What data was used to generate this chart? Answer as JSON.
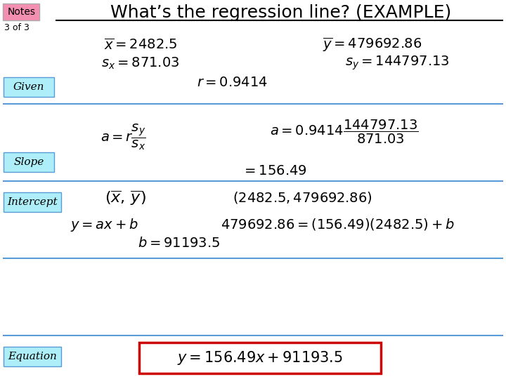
{
  "title": "What’s the regression line? (EXAMPLE)",
  "notes_label": "Notes",
  "notes_sub": "3 of 3",
  "bg_color": "#ffffff",
  "label_bg_cyan": "#aeeef8",
  "notes_bg": "#f48fb1",
  "equation_box_color": "#cc0000",
  "section_line_color": "#5b9bd5",
  "x_bar": "2482.5",
  "y_bar": "479692.86",
  "sx": "871.03",
  "sy": "144797.13",
  "r": "0.9414",
  "slope": "156.49",
  "b": "91193.5"
}
